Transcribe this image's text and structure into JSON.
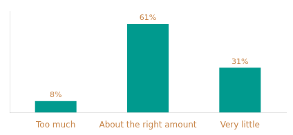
{
  "chart_data": {
    "type": "bar",
    "categories": [
      "Too much",
      "About the right amount",
      "Very little"
    ],
    "values": [
      8,
      61,
      31
    ],
    "value_labels": [
      "8%",
      "61%",
      "31%"
    ],
    "data_labels": true,
    "color": "#009a8e",
    "ylim": [
      0,
      70
    ],
    "tick_labels": "x",
    "grid": false
  }
}
